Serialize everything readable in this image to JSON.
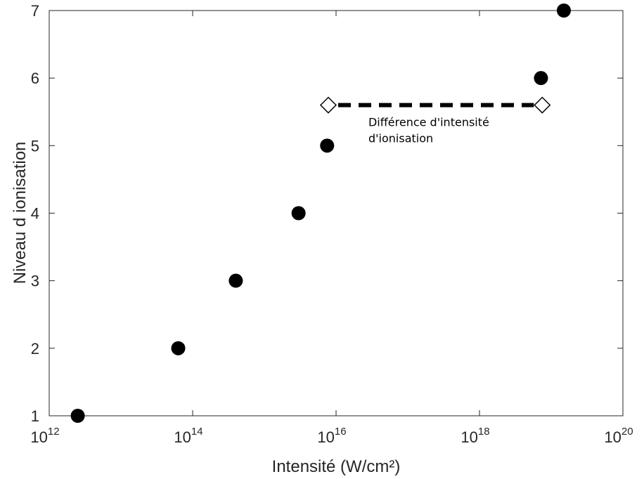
{
  "chart_data": {
    "type": "scatter",
    "xlabel": "Intensité (W/cm²)",
    "ylabel": "Niveau d ionisation",
    "x_scale": "log",
    "xlim": [
      1000000000000.0,
      1e+20
    ],
    "ylim": [
      1,
      7
    ],
    "x_ticks": [
      {
        "base": "10",
        "exp": "12",
        "value": 1000000000000.0
      },
      {
        "base": "10",
        "exp": "14",
        "value": 100000000000000.0
      },
      {
        "base": "10",
        "exp": "16",
        "value": 1e+16
      },
      {
        "base": "10",
        "exp": "18",
        "value": 1e+18
      },
      {
        "base": "10",
        "exp": "20",
        "value": 1e+20
      }
    ],
    "y_ticks": [
      "1",
      "2",
      "3",
      "4",
      "5",
      "6",
      "7"
    ],
    "grid": false,
    "points": [
      {
        "x": 2500000000000.0,
        "y": 1
      },
      {
        "x": 63000000000000.0,
        "y": 2
      },
      {
        "x": 400000000000000.0,
        "y": 3
      },
      {
        "x": 3000000000000000.0,
        "y": 4
      },
      {
        "x": 7500000000000000.0,
        "y": 5
      },
      {
        "x": 7.2e+18,
        "y": 6
      },
      {
        "x": 1.5e+19,
        "y": 7
      }
    ],
    "annotation": {
      "x_start": 7800000000000000.0,
      "x_end": 7.5e+18,
      "y": 5.6,
      "lines": [
        "Différence d'intensité",
        "d'ionisation"
      ]
    },
    "colors": {
      "points": "#000000",
      "axes": "#262626",
      "annotation_line": "#000000"
    }
  }
}
